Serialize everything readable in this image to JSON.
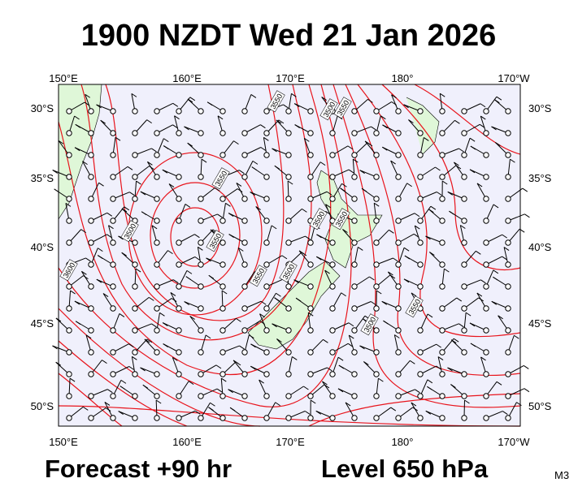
{
  "title": "1900 NZDT Wed 21 Jan 2026",
  "lon_labels": [
    "150°E",
    "160°E",
    "170°E",
    "180°",
    "170°W"
  ],
  "lat_labels": [
    "30°S",
    "35°S",
    "40°S",
    "45°S",
    "50°S"
  ],
  "contour_labels": [
    "3550",
    "3500",
    "3550",
    "3550",
    "3500",
    "3600",
    "3550",
    "3550",
    "3500",
    "3550",
    "3500",
    "3550",
    "3500"
  ],
  "footer": {
    "forecast": "Forecast +90 hr",
    "level": "Level 650 hPa"
  },
  "tag": "M3"
}
